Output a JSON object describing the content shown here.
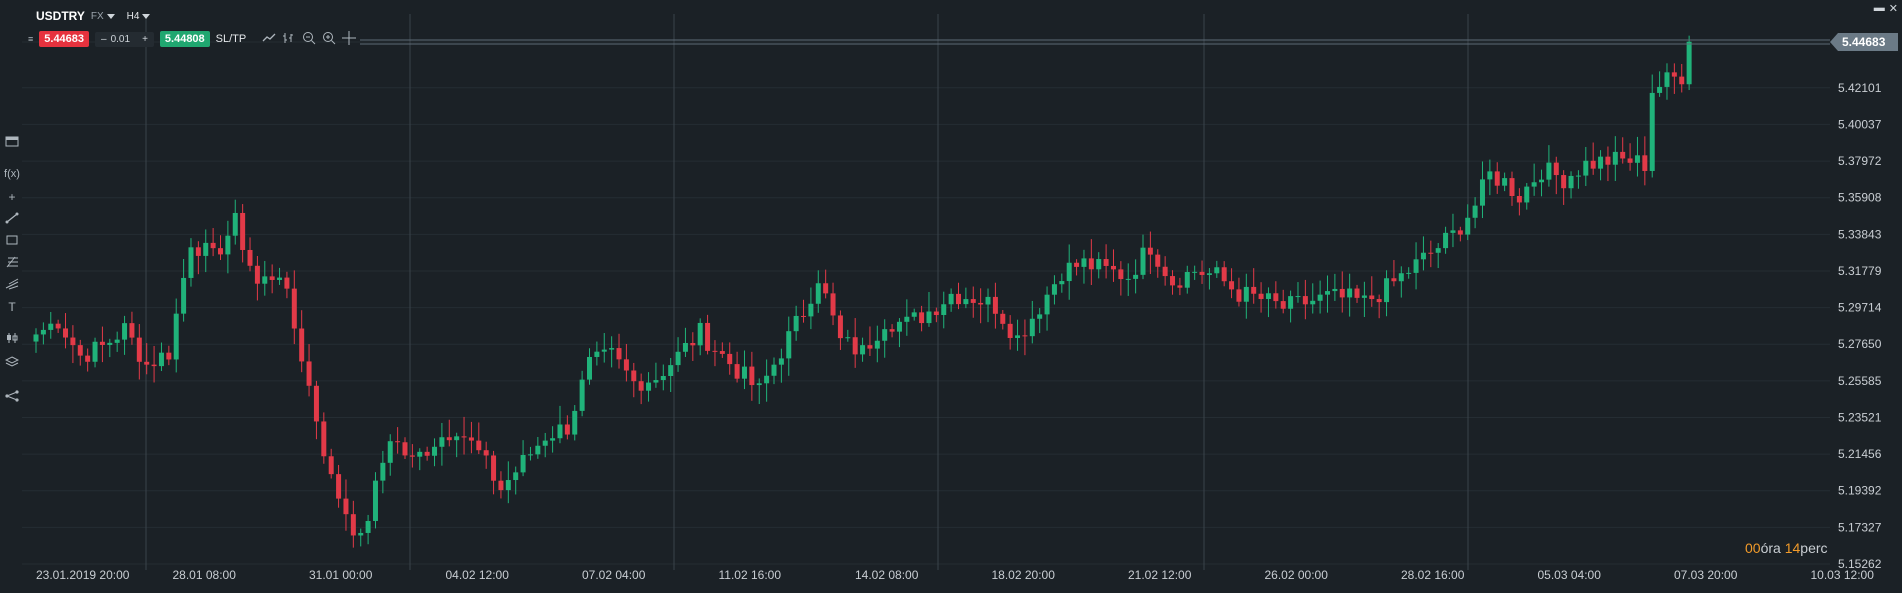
{
  "toolbar": {
    "symbol": "USDTRY",
    "market": "FX",
    "timeframe": "H4",
    "sell_price": "5.44683",
    "minus_label": "–",
    "quantity": "0.01",
    "plus_label": "+",
    "buy_price": "5.44808",
    "sltp_label": "SL/TP"
  },
  "icons": {
    "toolbar": [
      "line-chart-icon",
      "bar-type-icon",
      "zoom-out-icon",
      "zoom-in-icon",
      "crosshair-icon"
    ],
    "left_sidebar": [
      "window-icon",
      "function-icon",
      "crosshair-plus-icon",
      "trendline-icon",
      "rectangle-icon",
      "fibonacci-icon",
      "pitchfork-icon",
      "text-icon",
      "indicators-icon",
      "layers-icon",
      "share-icon"
    ]
  },
  "countdown": {
    "hours": "00",
    "hours_label": "óra",
    "minutes": "14",
    "minutes_label": "perc"
  },
  "colors": {
    "bull": "#20b37a",
    "bear": "#e23a48",
    "background": "#1b2126",
    "grid": "#252d33",
    "price_tag": "#6b7a86"
  },
  "chart_data": {
    "type": "candlestick",
    "symbol": "USDTRY",
    "timeframe": "H4",
    "ylim": [
      5.15262,
      5.44683
    ],
    "y_ticks": [
      "5.44683",
      "5.42101",
      "5.40037",
      "5.37972",
      "5.35908",
      "5.33843",
      "5.31779",
      "5.29714",
      "5.27650",
      "5.25585",
      "5.23521",
      "5.21456",
      "5.19392",
      "5.17327",
      "5.15262"
    ],
    "x_ticks": [
      "23.01.2019 20:00",
      "28.01 08:00",
      "31.01 00:00",
      "04.02 12:00",
      "07.02 04:00",
      "11.02 16:00",
      "14.02 08:00",
      "18.02 20:00",
      "21.02 12:00",
      "26.02 00:00",
      "28.02 16:00",
      "05.03 04:00",
      "07.03 20:00",
      "10.03 12:00"
    ],
    "current_price": 5.44683,
    "current_price_label": "5.44683",
    "anchors": [
      [
        0,
        5.282
      ],
      [
        3,
        5.29
      ],
      [
        6,
        5.27
      ],
      [
        9,
        5.275
      ],
      [
        12,
        5.285
      ],
      [
        15,
        5.265
      ],
      [
        18,
        5.272
      ],
      [
        21,
        5.335
      ],
      [
        24,
        5.325
      ],
      [
        27,
        5.345
      ],
      [
        30,
        5.31
      ],
      [
        33,
        5.318
      ],
      [
        36,
        5.27
      ],
      [
        40,
        5.2
      ],
      [
        44,
        5.165
      ],
      [
        46,
        5.195
      ],
      [
        48,
        5.225
      ],
      [
        51,
        5.21
      ],
      [
        54,
        5.222
      ],
      [
        57,
        5.23
      ],
      [
        60,
        5.215
      ],
      [
        63,
        5.195
      ],
      [
        66,
        5.21
      ],
      [
        69,
        5.225
      ],
      [
        72,
        5.23
      ],
      [
        75,
        5.265
      ],
      [
        78,
        5.27
      ],
      [
        81,
        5.255
      ],
      [
        84,
        5.258
      ],
      [
        87,
        5.27
      ],
      [
        90,
        5.283
      ],
      [
        93,
        5.27
      ],
      [
        96,
        5.258
      ],
      [
        98,
        5.25
      ],
      [
        101,
        5.273
      ],
      [
        104,
        5.295
      ],
      [
        106,
        5.315
      ],
      [
        109,
        5.278
      ],
      [
        112,
        5.272
      ],
      [
        115,
        5.29
      ],
      [
        118,
        5.288
      ],
      [
        121,
        5.295
      ],
      [
        124,
        5.305
      ],
      [
        127,
        5.303
      ],
      [
        130,
        5.298
      ],
      [
        133,
        5.28
      ],
      [
        136,
        5.298
      ],
      [
        139,
        5.318
      ],
      [
        142,
        5.322
      ],
      [
        145,
        5.318
      ],
      [
        148,
        5.315
      ],
      [
        151,
        5.332
      ],
      [
        154,
        5.312
      ],
      [
        157,
        5.318
      ],
      [
        160,
        5.315
      ],
      [
        163,
        5.305
      ],
      [
        166,
        5.302
      ],
      [
        169,
        5.297
      ],
      [
        172,
        5.3
      ],
      [
        175,
        5.303
      ],
      [
        178,
        5.302
      ],
      [
        180,
        5.3
      ],
      [
        183,
        5.308
      ],
      [
        186,
        5.318
      ],
      [
        189,
        5.328
      ],
      [
        192,
        5.338
      ],
      [
        195,
        5.355
      ],
      [
        197,
        5.372
      ],
      [
        199,
        5.368
      ],
      [
        201,
        5.36
      ],
      [
        204,
        5.375
      ],
      [
        207,
        5.37
      ],
      [
        210,
        5.378
      ],
      [
        213,
        5.38
      ],
      [
        216,
        5.38
      ],
      [
        218,
        5.378
      ],
      [
        219,
        5.42
      ],
      [
        221,
        5.425
      ],
      [
        223,
        5.428
      ],
      [
        224,
        5.447
      ]
    ],
    "tick_step": 3
  }
}
